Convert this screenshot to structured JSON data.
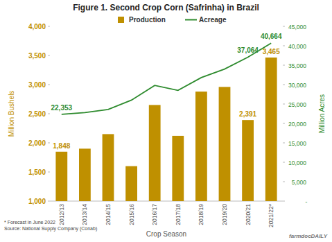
{
  "chart_data": {
    "type": "bar",
    "title": "Figure 1. Second Crop Corn (Safrinha) in Brazil",
    "x_label": "Crop Season",
    "y_label": "Million Bushels",
    "y2_label": "Million Acres",
    "categories": [
      "2012/13",
      "2013/14",
      "2014/15",
      "2015/16",
      "2016/17",
      "2017/18",
      "2018/19",
      "2019/20",
      "2020/21",
      "2021/22*"
    ],
    "series": [
      {
        "name": "Production",
        "type": "bar",
        "color": "#bf9000",
        "values": [
          1848,
          1900,
          2150,
          1600,
          2650,
          2120,
          2880,
          2960,
          2391,
          3465
        ],
        "value_labels": [
          "1,848",
          null,
          null,
          null,
          null,
          null,
          null,
          null,
          "2,391",
          "3,465"
        ]
      },
      {
        "name": "Acreage",
        "type": "line",
        "axis": "y2",
        "color": "#2e8b2e",
        "values": [
          22353,
          22800,
          23600,
          26000,
          29800,
          28500,
          31800,
          34000,
          37064,
          40664
        ],
        "value_labels": [
          "22,353",
          null,
          null,
          null,
          null,
          null,
          null,
          null,
          "37,064",
          "40,664"
        ]
      }
    ],
    "ylim": [
      1000,
      4000
    ],
    "yticks": [
      {
        "value": 1000,
        "label": "1,000"
      },
      {
        "value": 1500,
        "label": "1,500"
      },
      {
        "value": 2000,
        "label": "2,000"
      },
      {
        "value": 2500,
        "label": "2,500"
      },
      {
        "value": 3000,
        "label": "3,000"
      },
      {
        "value": 3500,
        "label": "3,500"
      },
      {
        "value": 4000,
        "label": "4,000"
      }
    ],
    "y2lim": [
      0,
      45000
    ],
    "y2ticks": [
      {
        "value": 0,
        "label": "-"
      },
      {
        "value": 5000,
        "label": "5,000"
      },
      {
        "value": 10000,
        "label": "10,000"
      },
      {
        "value": 15000,
        "label": "15,000"
      },
      {
        "value": 20000,
        "label": "20,000"
      },
      {
        "value": 25000,
        "label": "25,000"
      },
      {
        "value": 30000,
        "label": "30,000"
      },
      {
        "value": 35000,
        "label": "35,000"
      },
      {
        "value": 40000,
        "label": "40,000"
      },
      {
        "value": 45000,
        "label": "45,000"
      }
    ],
    "data_labels": true,
    "grid": false,
    "legend": "top",
    "annotations": [
      "* Forecast in June 2022",
      "Source: National Supply Company (Conab)",
      "farmdocDAILY"
    ]
  }
}
